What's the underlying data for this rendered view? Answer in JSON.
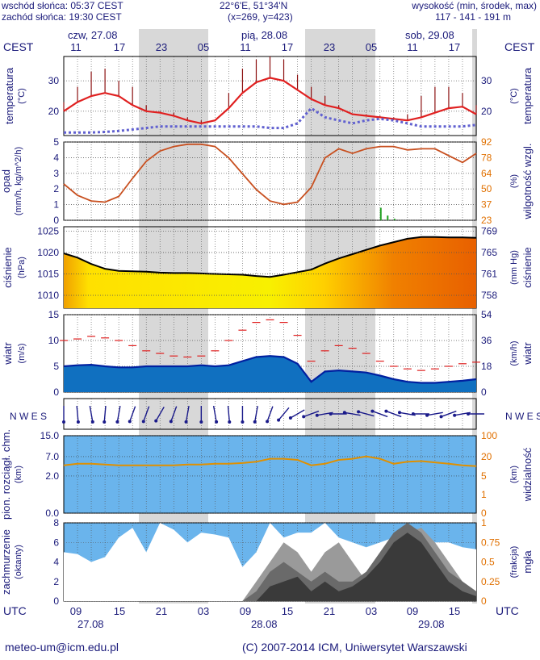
{
  "header": {
    "sunrise": "wschód słońca: 05:37 CEST",
    "sunset": "zachód słońca: 19:30 CEST",
    "coords": "22°6'E, 51°34'N",
    "grid": "(x=269,  y=423)",
    "alt_title": "wysokość (min, środek, max)",
    "alt_values": "117 - 141 - 191 m"
  },
  "top_axis": {
    "tz": "CEST",
    "days": [
      "czw, 27.08",
      "pią, 28.08",
      "sob, 29.08"
    ],
    "hours": [
      "11",
      "17",
      "23",
      "05",
      "11",
      "17",
      "23",
      "05",
      "11",
      "17"
    ]
  },
  "bottom_axis": {
    "tz": "UTC",
    "hours": [
      "09",
      "15",
      "21",
      "03",
      "09",
      "15",
      "21",
      "03",
      "09",
      "15"
    ],
    "dates": [
      "27.08",
      "28.08",
      "29.08"
    ]
  },
  "footer": {
    "email": "meteo-um@icm.edu.pl",
    "copyright": "(C) 2007-2014 ICM, Uniwersytet Warszawski"
  },
  "colors": {
    "panel_bg": "#ffffff",
    "night_band": "#d8d8d8",
    "temp_line": "#e02020",
    "dew_point": "#6060d0",
    "humidity_line": "#c85020",
    "pressure_line": "#000000",
    "wind_line": "#e02020",
    "cloud_bg": "#6ab4ec",
    "visibility_line": "#e09000",
    "label_navy": "#1a1a7a",
    "label_red": "#c03020",
    "label_orange": "#e07000"
  },
  "chart_data": [
    {
      "id": "temperature",
      "type": "line",
      "ylabel_left": "temperatura",
      "unit_left": "(°C)",
      "ylabel_right": "temperatura",
      "unit_right": "(°C)",
      "left_ticks": [
        "30",
        "20"
      ],
      "right_ticks": [
        "30",
        "20"
      ],
      "ylim": [
        12,
        38
      ],
      "x": [
        0,
        2,
        4,
        6,
        8,
        10,
        12,
        14,
        16,
        18,
        20,
        22,
        24,
        26,
        28,
        30,
        32,
        34,
        36,
        38,
        40,
        42,
        44,
        46,
        48,
        50,
        52,
        54,
        56,
        58,
        60
      ],
      "series": [
        {
          "key": "temp",
          "values": [
            20,
            23,
            25,
            26,
            25,
            22,
            20,
            19.5,
            18.5,
            17,
            16,
            17,
            21,
            26,
            29.5,
            31,
            30,
            27,
            24,
            22,
            21,
            19,
            18.5,
            18,
            17.5,
            17,
            18,
            19.5,
            21,
            21.5,
            19
          ]
        },
        {
          "key": "dew",
          "values": [
            13,
            13,
            13,
            13.2,
            13.5,
            14,
            14.5,
            15,
            15,
            15,
            15,
            15,
            15,
            15,
            15,
            14.5,
            14.5,
            16,
            21,
            18,
            17,
            16,
            17,
            17.5,
            17,
            16,
            15,
            15,
            15,
            15,
            15.5
          ]
        },
        {
          "key": "tmax",
          "values": [
            23,
            28,
            33,
            34,
            30,
            28,
            22,
            20,
            19.5,
            18,
            17,
            17,
            26,
            34,
            37,
            38,
            37,
            32,
            28,
            25,
            22,
            19,
            19,
            18.5,
            18,
            19,
            25,
            28,
            28,
            26,
            22
          ]
        }
      ]
    },
    {
      "id": "precipitation_humidity",
      "type": "line",
      "ylabel_left": "opad",
      "unit_left": "(mm/h, kg/m^2/h)",
      "ylabel_right": "wilgotność wzgl.",
      "unit_right": "(%)",
      "left_ticks": [
        "5",
        "4",
        "3",
        "2",
        "1",
        "0"
      ],
      "right_ticks": [
        "92",
        "78",
        "64",
        "50",
        "37",
        "23"
      ],
      "ylim": [
        23,
        92
      ],
      "x": [
        0,
        2,
        4,
        6,
        8,
        10,
        12,
        14,
        16,
        18,
        20,
        22,
        24,
        26,
        28,
        30,
        32,
        34,
        36,
        38,
        40,
        42,
        44,
        46,
        48,
        50,
        52,
        54,
        56,
        58,
        60
      ],
      "series": [
        {
          "key": "humidity",
          "values": [
            55,
            45,
            40,
            39,
            44,
            60,
            75,
            84,
            88,
            90,
            90,
            88,
            78,
            64,
            50,
            40,
            37,
            39,
            52,
            78,
            86,
            82,
            86,
            88,
            88,
            85,
            86,
            86,
            80,
            74,
            82
          ]
        }
      ],
      "precip_bars": [
        {
          "x": 46,
          "value": 0.8
        },
        {
          "x": 47,
          "value": 0.3
        },
        {
          "x": 48,
          "value": 0.1
        }
      ]
    },
    {
      "id": "pressure",
      "type": "area",
      "ylabel_left": "ciśnienie",
      "unit_left": "(hPa)",
      "ylabel_right": "ciśnienie",
      "unit_right": "(mm Hg)",
      "left_ticks": [
        "1025",
        "1020",
        "1015",
        "1010"
      ],
      "right_ticks": [
        "769",
        "765",
        "761",
        "758"
      ],
      "ylim": [
        1007,
        1026
      ],
      "x": [
        0,
        2,
        4,
        6,
        8,
        10,
        12,
        14,
        16,
        18,
        20,
        22,
        24,
        26,
        28,
        30,
        32,
        34,
        36,
        38,
        40,
        42,
        44,
        46,
        48,
        50,
        52,
        54,
        56,
        58,
        60
      ],
      "series": [
        {
          "key": "pressure",
          "values": [
            1019.8,
            1018.8,
            1017.3,
            1016.2,
            1015.7,
            1015.6,
            1015.5,
            1015.3,
            1015.2,
            1015.2,
            1015.1,
            1015.0,
            1014.9,
            1014.8,
            1014.5,
            1014.3,
            1014.8,
            1015.4,
            1016.0,
            1017.4,
            1018.6,
            1019.6,
            1020.6,
            1021.6,
            1022.4,
            1023.2,
            1023.6,
            1023.6,
            1023.5,
            1023.5,
            1023.4
          ]
        }
      ]
    },
    {
      "id": "wind",
      "type": "area",
      "ylabel_left": "wiatr",
      "unit_left": "(m/s)",
      "ylabel_right": "wiatr",
      "unit_right": "(km/h)",
      "left_ticks": [
        "15",
        "10",
        "5",
        "0"
      ],
      "right_ticks": [
        "54",
        "36",
        "18",
        "0"
      ],
      "ylim": [
        0,
        15
      ],
      "x": [
        0,
        2,
        4,
        6,
        8,
        10,
        12,
        14,
        16,
        18,
        20,
        22,
        24,
        26,
        28,
        30,
        32,
        34,
        36,
        38,
        40,
        42,
        44,
        46,
        48,
        50,
        52,
        54,
        56,
        58,
        60
      ],
      "series": [
        {
          "key": "wind_mean",
          "values": [
            5.0,
            5.2,
            5.3,
            5.0,
            4.8,
            4.8,
            5.0,
            5.0,
            5.0,
            5.0,
            5.2,
            5.0,
            5.2,
            6.0,
            6.8,
            7.0,
            6.8,
            5.5,
            2.0,
            4.0,
            4.2,
            4.0,
            3.8,
            3.2,
            2.5,
            2.0,
            1.8,
            1.8,
            2.0,
            2.2,
            2.5
          ]
        },
        {
          "key": "gust",
          "values": [
            10,
            10.3,
            10.8,
            10.5,
            10,
            9,
            8,
            7.5,
            7,
            6.8,
            7,
            8,
            10,
            12,
            13.5,
            14,
            13.5,
            11,
            6,
            8,
            9,
            8.5,
            7.5,
            6,
            5,
            4.5,
            4.2,
            4.5,
            5,
            5.5,
            5.8
          ]
        }
      ]
    },
    {
      "id": "wind_direction",
      "type": "scatter",
      "compass": "N W E S",
      "x": [
        0,
        2,
        4,
        6,
        8,
        10,
        12,
        14,
        16,
        18,
        20,
        22,
        24,
        26,
        28,
        30,
        32,
        34,
        36,
        38,
        40,
        42,
        44,
        46,
        48,
        50,
        52,
        54,
        56,
        58,
        60
      ],
      "directions_deg": [
        180,
        175,
        170,
        185,
        190,
        200,
        200,
        210,
        200,
        190,
        180,
        170,
        175,
        180,
        190,
        200,
        220,
        240,
        250,
        260,
        270,
        280,
        285,
        290,
        290,
        280,
        270,
        260,
        250,
        260,
        270
      ]
    },
    {
      "id": "cloud_visibility",
      "type": "line",
      "ylabel_left": "pion. rozciągł. chm.",
      "unit_left": "(km)",
      "ylabel_right": "widzialność",
      "unit_right": "(km)",
      "left_ticks": [
        "15.0",
        "7.0",
        "2.0",
        "0.0"
      ],
      "right_ticks": [
        "100",
        "20",
        "5",
        "1",
        "0"
      ],
      "x": [
        0,
        2,
        4,
        6,
        8,
        10,
        12,
        14,
        16,
        18,
        20,
        22,
        24,
        26,
        28,
        30,
        32,
        34,
        36,
        38,
        40,
        42,
        44,
        46,
        48,
        50,
        52,
        54,
        56,
        58,
        60
      ],
      "series": [
        {
          "key": "visibility",
          "values": [
            20,
            22,
            22,
            21,
            20,
            20,
            20,
            20,
            20,
            21,
            21,
            22,
            22,
            23,
            25,
            30,
            30,
            28,
            20,
            22,
            28,
            30,
            35,
            30,
            22,
            25,
            26,
            24,
            22,
            20,
            19
          ]
        }
      ]
    },
    {
      "id": "cloudiness_fog",
      "type": "area",
      "ylabel_left": "zachmurzenie",
      "unit_left": "(oktanty)",
      "ylabel_right": "mgła",
      "unit_right": "(frakcja)",
      "left_ticks": [
        "8",
        "6",
        "4",
        "2",
        "0"
      ],
      "right_ticks": [
        "1",
        "0.75",
        "0.5",
        "0.25",
        "0"
      ],
      "ylim": [
        0,
        8
      ],
      "x": [
        0,
        2,
        4,
        6,
        8,
        10,
        12,
        14,
        16,
        18,
        20,
        22,
        24,
        26,
        28,
        30,
        32,
        34,
        36,
        38,
        40,
        42,
        44,
        46,
        48,
        50,
        52,
        54,
        56,
        58,
        60
      ],
      "series": [
        {
          "key": "total",
          "values": [
            5,
            4.8,
            4,
            4.5,
            6.5,
            7.5,
            5,
            8,
            7.3,
            6,
            7,
            6.8,
            6.5,
            3.5,
            5,
            8,
            6.5,
            7,
            7,
            8,
            6.5,
            6,
            5.5,
            6,
            6.5,
            6.5,
            6.3,
            6,
            6,
            5.5,
            5.3
          ]
        },
        {
          "key": "high",
          "values": [
            0,
            0,
            0,
            0,
            0,
            0,
            0,
            0,
            0,
            0,
            0,
            0,
            0,
            0,
            2.0,
            4,
            6,
            5,
            3,
            5,
            6,
            4,
            2,
            4,
            6,
            7,
            7.5,
            6,
            4,
            2,
            1
          ]
        },
        {
          "key": "mid",
          "values": [
            0,
            0,
            0,
            0,
            0,
            0,
            0,
            0,
            0,
            0,
            0,
            0,
            0,
            0,
            1.0,
            3,
            4,
            3,
            2,
            3,
            2,
            2,
            3,
            5,
            7,
            8,
            7,
            5,
            3,
            2,
            1
          ]
        },
        {
          "key": "low",
          "values": [
            0,
            0,
            0,
            0,
            0,
            0,
            0,
            0,
            0,
            0,
            0,
            0,
            0,
            0,
            0,
            1.5,
            2,
            2.5,
            1,
            2,
            1,
            1.5,
            2.5,
            4,
            6,
            7,
            6,
            4,
            2,
            1,
            0.5
          ]
        }
      ]
    }
  ]
}
